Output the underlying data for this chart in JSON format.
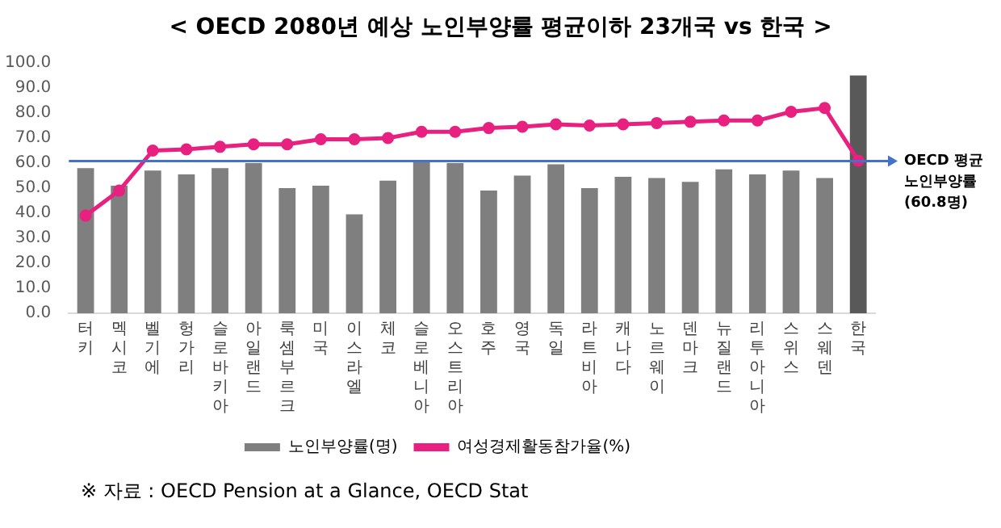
{
  "chart_data": {
    "type": "bar",
    "title": "< OECD 2080년 예상 노인부양률 평균이하 23개국 vs 한국 >",
    "categories": [
      "터키",
      "멕시코",
      "벨기에",
      "헝가리",
      "슬로바키아",
      "아일랜드",
      "룩셈부르크",
      "미국",
      "이스라엘",
      "체코",
      "슬로베니아",
      "오스트리아",
      "호주",
      "영국",
      "독일",
      "라트비아",
      "캐나다",
      "노르웨이",
      "덴마크",
      "뉴질랜드",
      "리투아니아",
      "스위스",
      "스웨덴",
      "한국"
    ],
    "series": [
      {
        "name": "노인부양률(명)",
        "color": "#7f7f7f",
        "colors": [
          "#7f7f7f",
          "#7f7f7f",
          "#7f7f7f",
          "#7f7f7f",
          "#7f7f7f",
          "#7f7f7f",
          "#7f7f7f",
          "#7f7f7f",
          "#7f7f7f",
          "#7f7f7f",
          "#7f7f7f",
          "#7f7f7f",
          "#7f7f7f",
          "#7f7f7f",
          "#7f7f7f",
          "#7f7f7f",
          "#7f7f7f",
          "#7f7f7f",
          "#7f7f7f",
          "#7f7f7f",
          "#7f7f7f",
          "#7f7f7f",
          "#7f7f7f",
          "#595959"
        ],
        "values": [
          58,
          51,
          57,
          55.5,
          58,
          60,
          50,
          51,
          39.5,
          53,
          61,
          60,
          49,
          55,
          59.5,
          50,
          54.5,
          54,
          52.5,
          57.5,
          55.5,
          57,
          54,
          95
        ]
      },
      {
        "name": "여성경제활동참가율(%)",
        "type": "line",
        "color": "#e8207f",
        "marker": "circle",
        "values": [
          39,
          49,
          65,
          65.5,
          66.5,
          67.5,
          67.5,
          69.5,
          69.5,
          70,
          72.5,
          72.5,
          74,
          74.5,
          75.5,
          75,
          75.5,
          76,
          76.5,
          77,
          77,
          80.5,
          82,
          61
        ]
      }
    ],
    "ylim": [
      0,
      100
    ],
    "yticks": [
      {
        "value": 0,
        "label": "0.0"
      },
      {
        "value": 10,
        "label": "10.0"
      },
      {
        "value": 20,
        "label": "20.0"
      },
      {
        "value": 30,
        "label": "30.0"
      },
      {
        "value": 40,
        "label": "40.0"
      },
      {
        "value": 50,
        "label": "50.0"
      },
      {
        "value": 60,
        "label": "60.0"
      },
      {
        "value": 70,
        "label": "70.0"
      },
      {
        "value": 80,
        "label": "80.0"
      },
      {
        "value": 90,
        "label": "90.0"
      },
      {
        "value": 100,
        "label": "100.0"
      }
    ],
    "ref_lines": [
      {
        "axis": "y",
        "value": 60.8,
        "label": "OECD 평균\n노인부양률\n(60.8명)",
        "color": "#4472c4"
      }
    ],
    "legend": "bottom",
    "annotations": [
      "※ 자료 : OECD Pension at a Glance, OECD Stat"
    ]
  }
}
